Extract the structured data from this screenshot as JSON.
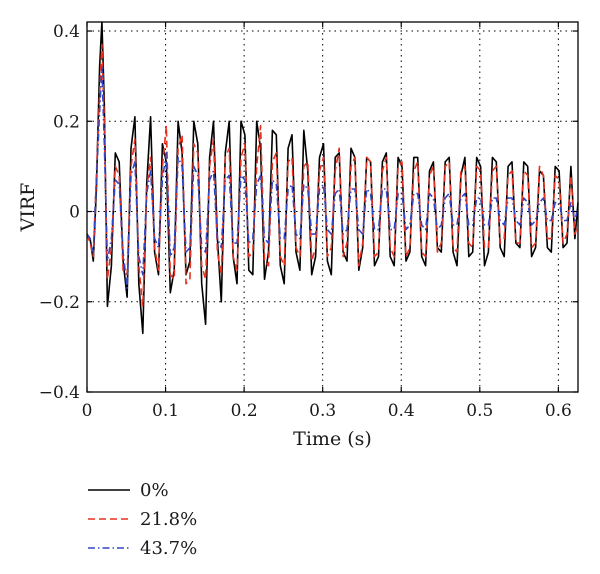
{
  "chart_data": {
    "type": "line",
    "title": "",
    "xlabel": "Time (s)",
    "ylabel": "VIRF",
    "xlim": [
      0,
      0.625
    ],
    "ylim": [
      -0.4,
      0.42
    ],
    "xticks": [
      0,
      0.1,
      0.2,
      0.3,
      0.4,
      0.5,
      0.6
    ],
    "xtick_labels": [
      "0",
      "0.1",
      "0.2",
      "0.3",
      "0.4",
      "0.5",
      "0.6"
    ],
    "yticks": [
      -0.4,
      -0.2,
      0,
      0.2,
      0.4
    ],
    "ytick_labels": [
      "−0.4",
      "−0.2",
      "0",
      "0.2",
      "0.4"
    ],
    "grid": true,
    "legend_position": "below-left",
    "series": [
      {
        "name": "0%",
        "color": "#000000",
        "dash": "solid",
        "x": [
          0,
          0.004,
          0.008,
          0.012,
          0.016,
          0.019,
          0.022,
          0.026,
          0.031,
          0.036,
          0.041,
          0.046,
          0.051,
          0.056,
          0.061,
          0.066,
          0.071,
          0.076,
          0.081,
          0.086,
          0.091,
          0.096,
          0.101,
          0.106,
          0.111,
          0.116,
          0.121,
          0.126,
          0.131,
          0.136,
          0.141,
          0.146,
          0.151,
          0.156,
          0.161,
          0.166,
          0.171,
          0.176,
          0.181,
          0.186,
          0.191,
          0.196,
          0.201,
          0.206,
          0.211,
          0.216,
          0.221,
          0.226,
          0.231,
          0.236,
          0.241,
          0.246,
          0.251,
          0.256,
          0.261,
          0.266,
          0.271,
          0.276,
          0.281,
          0.286,
          0.291,
          0.296,
          0.301,
          0.306,
          0.311,
          0.316,
          0.321,
          0.326,
          0.331,
          0.336,
          0.341,
          0.346,
          0.351,
          0.356,
          0.361,
          0.366,
          0.371,
          0.376,
          0.381,
          0.386,
          0.391,
          0.396,
          0.401,
          0.406,
          0.411,
          0.416,
          0.421,
          0.426,
          0.431,
          0.436,
          0.441,
          0.446,
          0.451,
          0.456,
          0.461,
          0.466,
          0.471,
          0.476,
          0.481,
          0.486,
          0.491,
          0.496,
          0.501,
          0.506,
          0.511,
          0.516,
          0.521,
          0.526,
          0.531,
          0.536,
          0.541,
          0.546,
          0.551,
          0.556,
          0.561,
          0.566,
          0.571,
          0.576,
          0.581,
          0.586,
          0.591,
          0.596,
          0.601,
          0.606,
          0.611,
          0.616,
          0.621,
          0.625
        ],
        "y": [
          -0.05,
          -0.06,
          -0.11,
          0.05,
          0.32,
          0.42,
          0.24,
          -0.21,
          -0.12,
          0.13,
          0.11,
          -0.11,
          -0.19,
          0.14,
          0.21,
          -0.16,
          -0.27,
          0.06,
          0.21,
          -0.09,
          -0.14,
          0.15,
          0.11,
          -0.18,
          -0.13,
          0.2,
          0.13,
          -0.14,
          -0.11,
          0.2,
          0.15,
          -0.16,
          -0.25,
          0.12,
          0.2,
          -0.06,
          -0.2,
          0.13,
          0.2,
          -0.1,
          -0.16,
          0.2,
          0.17,
          -0.13,
          -0.14,
          0.2,
          0.14,
          -0.15,
          -0.09,
          0.18,
          0.17,
          -0.12,
          -0.16,
          0.14,
          0.17,
          -0.09,
          -0.13,
          0.18,
          0.09,
          -0.14,
          -0.1,
          0.12,
          0.15,
          -0.11,
          -0.14,
          0.12,
          0.13,
          -0.09,
          -0.11,
          0.14,
          0.12,
          -0.13,
          -0.08,
          0.12,
          0.11,
          -0.12,
          -0.1,
          0.11,
          0.13,
          -0.1,
          -0.12,
          0.12,
          0.1,
          -0.11,
          -0.09,
          0.12,
          0.12,
          -0.1,
          -0.12,
          0.09,
          0.11,
          -0.08,
          -0.09,
          0.11,
          0.12,
          -0.09,
          -0.12,
          0.08,
          0.12,
          -0.1,
          -0.09,
          0.12,
          0.1,
          -0.12,
          -0.09,
          0.12,
          0.11,
          -0.08,
          -0.1,
          0.1,
          0.11,
          -0.07,
          -0.08,
          0.11,
          0.1,
          -0.1,
          -0.08,
          0.09,
          0.08,
          -0.08,
          -0.09,
          0.1,
          0.09,
          -0.08,
          -0.07,
          0.1,
          -0.06,
          0.02
        ]
      },
      {
        "name": "21.8%",
        "color": "#e8311f",
        "dash": "dashed",
        "x": [
          0,
          0.004,
          0.008,
          0.012,
          0.016,
          0.019,
          0.022,
          0.026,
          0.031,
          0.036,
          0.041,
          0.046,
          0.051,
          0.056,
          0.061,
          0.066,
          0.071,
          0.076,
          0.081,
          0.086,
          0.091,
          0.096,
          0.101,
          0.106,
          0.111,
          0.116,
          0.121,
          0.126,
          0.131,
          0.136,
          0.141,
          0.146,
          0.151,
          0.156,
          0.161,
          0.166,
          0.171,
          0.176,
          0.181,
          0.186,
          0.191,
          0.196,
          0.201,
          0.206,
          0.211,
          0.216,
          0.221,
          0.226,
          0.231,
          0.236,
          0.241,
          0.246,
          0.251,
          0.256,
          0.261,
          0.266,
          0.271,
          0.276,
          0.281,
          0.286,
          0.291,
          0.296,
          0.301,
          0.306,
          0.311,
          0.316,
          0.321,
          0.326,
          0.331,
          0.336,
          0.341,
          0.346,
          0.351,
          0.356,
          0.361,
          0.366,
          0.371,
          0.376,
          0.381,
          0.386,
          0.391,
          0.396,
          0.401,
          0.406,
          0.411,
          0.416,
          0.421,
          0.426,
          0.431,
          0.436,
          0.441,
          0.446,
          0.451,
          0.456,
          0.461,
          0.466,
          0.471,
          0.476,
          0.481,
          0.486,
          0.491,
          0.496,
          0.501,
          0.506,
          0.511,
          0.516,
          0.521,
          0.526,
          0.531,
          0.536,
          0.541,
          0.546,
          0.551,
          0.556,
          0.561,
          0.566,
          0.571,
          0.576,
          0.581,
          0.586,
          0.591,
          0.596,
          0.601,
          0.606,
          0.611,
          0.616,
          0.621,
          0.625
        ],
        "y": [
          -0.05,
          -0.07,
          -0.1,
          0.08,
          0.26,
          0.37,
          0.2,
          -0.15,
          -0.08,
          0.1,
          0.08,
          -0.13,
          -0.14,
          0.1,
          0.16,
          -0.12,
          -0.21,
          0.05,
          0.12,
          -0.08,
          -0.13,
          0.1,
          0.19,
          -0.14,
          -0.15,
          0.14,
          0.17,
          -0.16,
          -0.15,
          0.15,
          0.13,
          -0.12,
          -0.15,
          0.1,
          0.16,
          -0.09,
          -0.14,
          0.12,
          0.14,
          -0.1,
          -0.13,
          0.12,
          0.15,
          -0.1,
          -0.09,
          0.1,
          0.19,
          -0.11,
          -0.12,
          0.11,
          0.13,
          -0.1,
          -0.12,
          0.11,
          0.12,
          -0.08,
          -0.1,
          0.1,
          0.11,
          -0.11,
          -0.08,
          0.09,
          0.12,
          -0.1,
          -0.08,
          0.09,
          0.14,
          -0.1,
          -0.07,
          0.1,
          0.12,
          -0.12,
          -0.07,
          0.12,
          0.11,
          -0.1,
          -0.09,
          0.09,
          0.12,
          -0.08,
          -0.1,
          0.1,
          0.11,
          -0.1,
          -0.08,
          0.09,
          0.11,
          -0.09,
          -0.1,
          0.08,
          0.1,
          -0.09,
          -0.07,
          0.1,
          0.11,
          -0.08,
          -0.09,
          0.09,
          0.1,
          -0.07,
          -0.08,
          0.1,
          0.09,
          -0.08,
          -0.08,
          0.09,
          0.1,
          -0.07,
          -0.06,
          0.08,
          0.09,
          -0.07,
          -0.07,
          0.09,
          0.08,
          -0.08,
          -0.07,
          0.1,
          0.08,
          -0.06,
          -0.06,
          0.08,
          0.07,
          -0.07,
          -0.05,
          0.08,
          -0.05,
          -0.03
        ]
      },
      {
        "name": "43.7%",
        "color": "#3346c4",
        "dash": "dashdot",
        "x": [
          0,
          0.004,
          0.008,
          0.012,
          0.016,
          0.019,
          0.022,
          0.026,
          0.031,
          0.036,
          0.041,
          0.046,
          0.051,
          0.056,
          0.061,
          0.066,
          0.071,
          0.076,
          0.081,
          0.086,
          0.091,
          0.096,
          0.101,
          0.106,
          0.111,
          0.116,
          0.121,
          0.126,
          0.131,
          0.136,
          0.141,
          0.146,
          0.151,
          0.156,
          0.161,
          0.166,
          0.171,
          0.176,
          0.181,
          0.186,
          0.191,
          0.196,
          0.201,
          0.206,
          0.211,
          0.216,
          0.221,
          0.226,
          0.231,
          0.236,
          0.241,
          0.246,
          0.251,
          0.256,
          0.261,
          0.266,
          0.271,
          0.276,
          0.281,
          0.286,
          0.291,
          0.296,
          0.301,
          0.306,
          0.311,
          0.316,
          0.321,
          0.326,
          0.331,
          0.336,
          0.341,
          0.346,
          0.351,
          0.356,
          0.361,
          0.366,
          0.371,
          0.376,
          0.381,
          0.386,
          0.391,
          0.396,
          0.401,
          0.406,
          0.411,
          0.416,
          0.421,
          0.426,
          0.431,
          0.436,
          0.441,
          0.446,
          0.451,
          0.456,
          0.461,
          0.466,
          0.471,
          0.476,
          0.481,
          0.486,
          0.491,
          0.496,
          0.501,
          0.506,
          0.511,
          0.516,
          0.521,
          0.526,
          0.531,
          0.536,
          0.541,
          0.546,
          0.551,
          0.556,
          0.561,
          0.566,
          0.571,
          0.576,
          0.581,
          0.586,
          0.591,
          0.596,
          0.601,
          0.606,
          0.611,
          0.616,
          0.621,
          0.625
        ],
        "y": [
          -0.05,
          -0.06,
          -0.09,
          0.07,
          0.22,
          0.32,
          0.15,
          -0.11,
          -0.06,
          0.07,
          0.06,
          -0.09,
          -0.17,
          0.08,
          0.11,
          -0.1,
          -0.14,
          0.04,
          0.09,
          -0.06,
          -0.08,
          0.07,
          0.13,
          -0.1,
          -0.08,
          0.12,
          0.1,
          -0.09,
          -0.08,
          0.1,
          0.08,
          -0.08,
          -0.09,
          0.07,
          0.09,
          -0.06,
          -0.08,
          0.07,
          0.08,
          -0.07,
          -0.07,
          0.08,
          0.07,
          -0.07,
          -0.06,
          0.06,
          0.08,
          -0.06,
          -0.07,
          0.07,
          0.06,
          -0.06,
          -0.06,
          0.05,
          0.06,
          -0.05,
          -0.06,
          0.06,
          0.05,
          -0.05,
          -0.05,
          0.05,
          0.06,
          -0.04,
          -0.05,
          0.04,
          0.05,
          -0.05,
          -0.04,
          0.05,
          0.05,
          -0.04,
          -0.05,
          0.05,
          0.04,
          -0.04,
          -0.04,
          0.05,
          0.05,
          -0.04,
          -0.04,
          0.04,
          0.04,
          -0.04,
          -0.03,
          0.04,
          0.04,
          -0.03,
          -0.04,
          0.04,
          0.03,
          -0.04,
          -0.03,
          0.03,
          0.04,
          -0.03,
          -0.03,
          0.03,
          0.04,
          -0.03,
          -0.03,
          0.03,
          0.03,
          -0.03,
          -0.03,
          0.03,
          0.03,
          -0.02,
          -0.03,
          0.03,
          0.03,
          -0.02,
          -0.03,
          0.03,
          0.02,
          -0.03,
          -0.02,
          0.02,
          0.03,
          -0.02,
          -0.02,
          0.02,
          0.02,
          -0.02,
          -0.02,
          0.02,
          -0.02,
          0.01
        ]
      }
    ]
  }
}
